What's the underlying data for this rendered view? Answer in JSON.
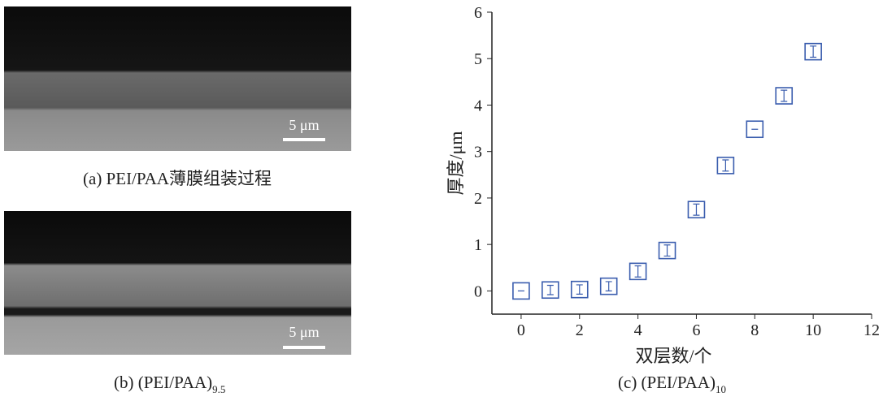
{
  "panels": [
    {
      "caption": "(a) PEI/PAA薄膜组装过程",
      "scale_bar": "5 μm"
    },
    {
      "caption": "(b) (PEI/PAA)",
      "caption_sub": "9.5",
      "scale_bar": "5 μm"
    }
  ],
  "chart_data": {
    "type": "scatter",
    "caption": "(c) (PEI/PAA)",
    "caption_sub": "10",
    "x_label": "双层数/个",
    "y_label": "厚度/μm",
    "x": [
      0,
      1,
      2,
      3,
      4,
      5,
      6,
      7,
      8,
      9,
      10
    ],
    "values": [
      0,
      0.02,
      0.03,
      0.1,
      0.42,
      0.87,
      1.75,
      2.7,
      3.48,
      4.2,
      5.15
    ],
    "errors": [
      0,
      0.1,
      0.1,
      0.1,
      0.12,
      0.12,
      0.12,
      0.12,
      0,
      0.12,
      0.12
    ],
    "color": "#3a5dae",
    "xlim": [
      -1,
      12
    ],
    "xticks": [
      0,
      2,
      4,
      6,
      8,
      10,
      12
    ],
    "ylim": [
      -0.5,
      6
    ],
    "yticks": [
      0,
      1,
      2,
      3,
      4,
      5,
      6
    ]
  }
}
